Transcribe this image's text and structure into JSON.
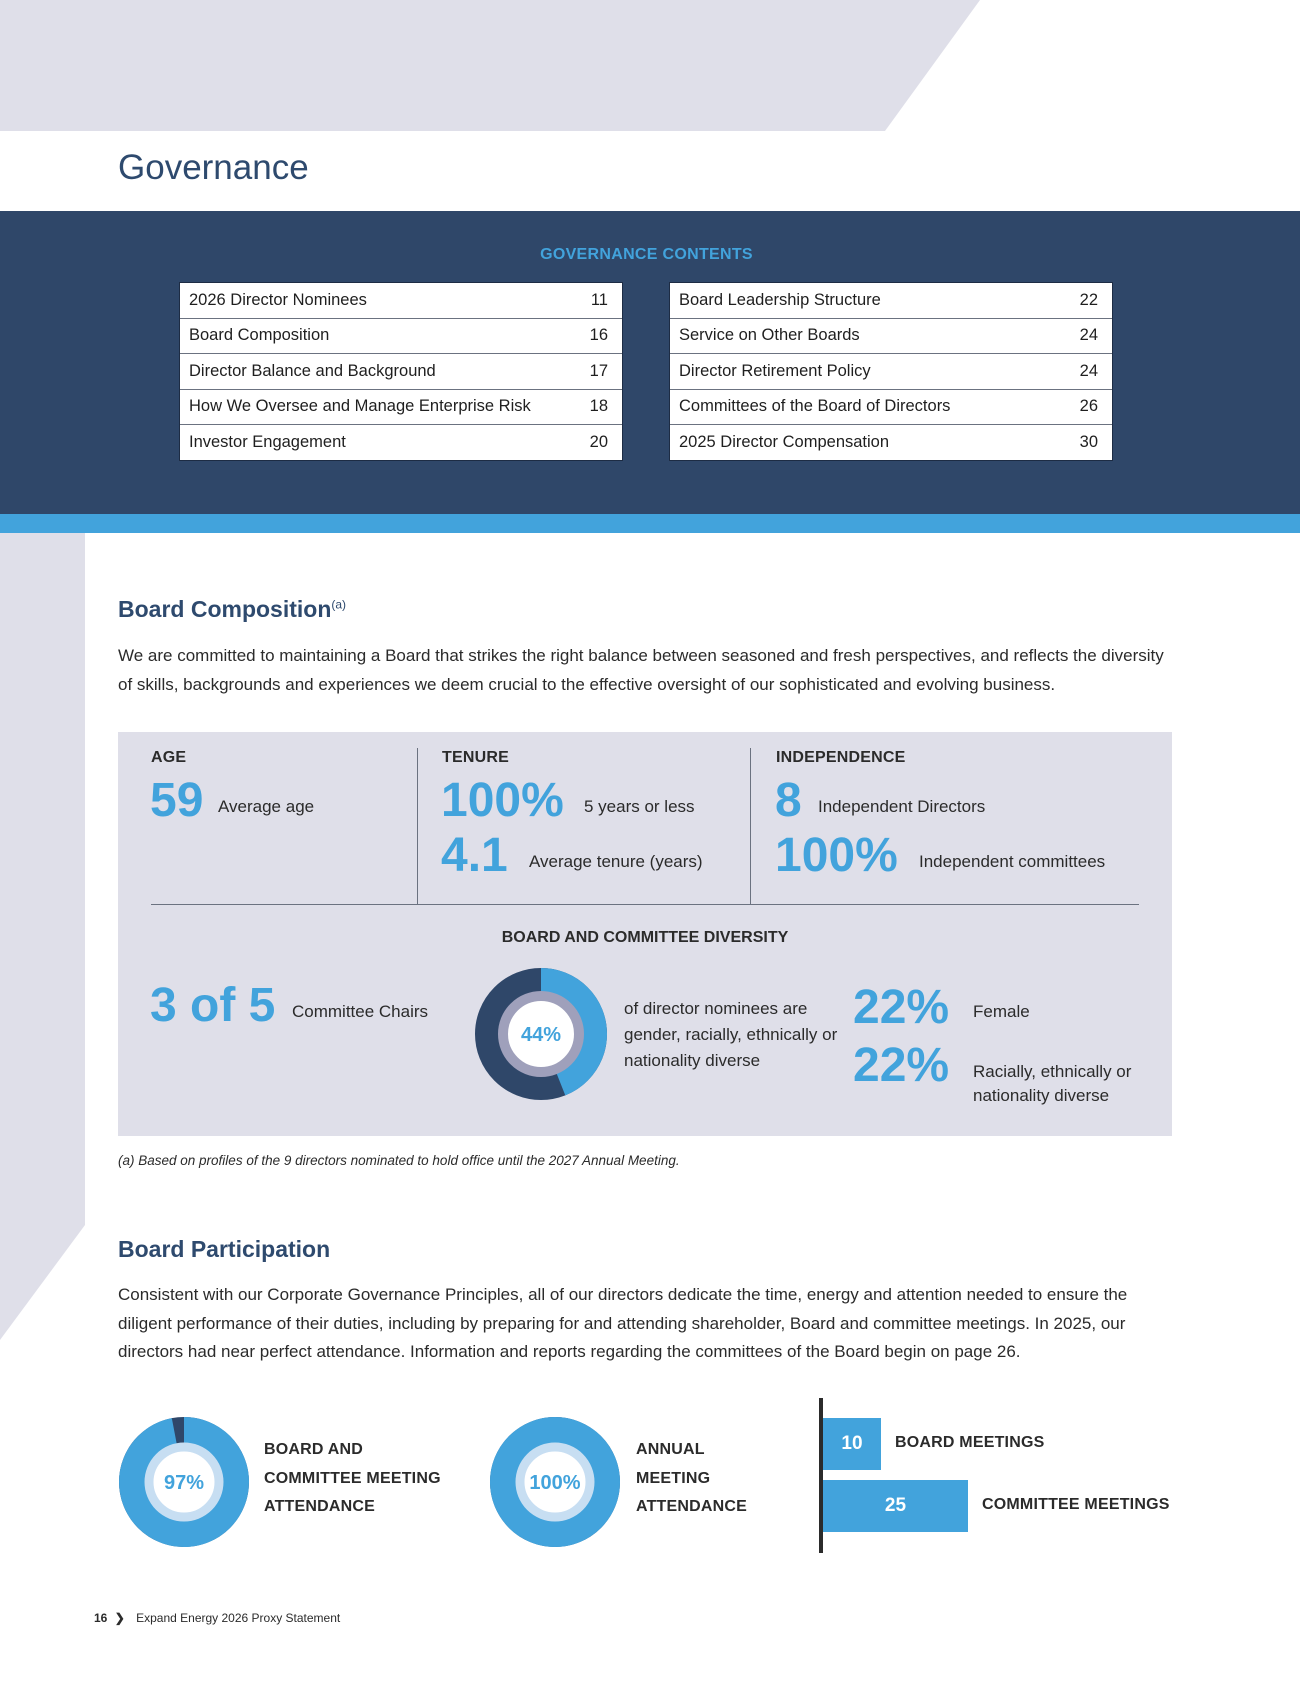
{
  "page_title": "Governance",
  "contents": {
    "heading": "GOVERNANCE CONTENTS",
    "left": [
      {
        "label": "2026 Director Nominees",
        "page": "11"
      },
      {
        "label": "Board Composition",
        "page": "16"
      },
      {
        "label": "Director Balance and Background",
        "page": "17"
      },
      {
        "label": "How We Oversee and Manage Enterprise Risk",
        "page": "18"
      },
      {
        "label": "Investor Engagement",
        "page": "20"
      }
    ],
    "right": [
      {
        "label": "Board Leadership Structure",
        "page": "22"
      },
      {
        "label": "Service on Other Boards",
        "page": "24"
      },
      {
        "label": "Director Retirement Policy",
        "page": "24"
      },
      {
        "label": "Committees of the Board of Directors",
        "page": "26"
      },
      {
        "label": "2025 Director Compensation",
        "page": "30"
      }
    ]
  },
  "board_composition": {
    "title": "Board Composition",
    "footnote_marker": "(a)",
    "paragraph": "We are committed to maintaining a Board that strikes the right balance between seasoned and fresh perspectives, and reflects the diversity of skills, backgrounds and experiences we deem crucial to the effective oversight of our sophisticated and evolving business.",
    "age": {
      "label": "AGE",
      "value": "59",
      "desc": "Average age"
    },
    "tenure": {
      "label": "TENURE",
      "value1": "100%",
      "desc1": "5 years or less",
      "value2": "4.1",
      "desc2": "Average tenure (years)"
    },
    "independence": {
      "label": "INDEPENDENCE",
      "value1": "8",
      "desc1": "Independent Directors",
      "value2": "100%",
      "desc2": "Independent committees"
    },
    "diversity": {
      "title": "BOARD AND COMMITTEE DIVERSITY",
      "chairs_value": "3 of 5",
      "chairs_desc": "Committee Chairs",
      "donut_label": "44%",
      "donut_fraction": 0.44,
      "donut_text": "of director nominees are gender, racially, ethnically or nationality diverse",
      "female_value": "22%",
      "female_desc": "Female",
      "racial_value": "22%",
      "racial_desc": "Racially, ethnically or nationality diverse"
    },
    "footnote": "(a)  Based on profiles of the 9 directors nominated to hold office until the 2027 Annual Meeting."
  },
  "board_participation": {
    "title": "Board Participation",
    "paragraph": "Consistent with our Corporate Governance Principles, all of our directors dedicate the time, energy and attention needed to ensure the diligent performance of their duties, including by preparing for and attending shareholder, Board and committee meetings. In 2025, our directors had near perfect attendance. Information and reports regarding the committees of the Board begin on page 26.",
    "attendance": {
      "label": "97%",
      "fraction": 0.97,
      "caption": [
        "BOARD AND",
        "COMMITTEE MEETING",
        "ATTENDANCE"
      ]
    },
    "annual": {
      "label": "100%",
      "fraction": 1.0,
      "caption": [
        "ANNUAL",
        "MEETING",
        "ATTENDANCE"
      ]
    },
    "meetings": [
      {
        "value": 10,
        "label": "BOARD MEETINGS"
      },
      {
        "value": 25,
        "label": "COMMITTEE MEETINGS"
      }
    ]
  },
  "colors": {
    "navy": "#2f4769",
    "accent_blue": "#42a3dc",
    "panel_lavender": "#dfdfe9",
    "title_blue": "#2e4a6e"
  },
  "footer": {
    "page_number": "16",
    "chevron": "❯",
    "text": "Expand Energy 2026 Proxy Statement"
  }
}
